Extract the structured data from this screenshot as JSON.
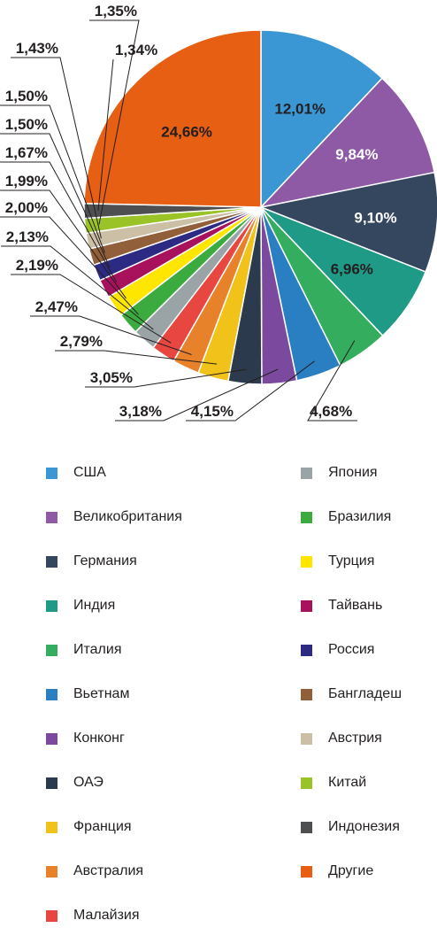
{
  "chart_data": {
    "type": "pie",
    "title": "",
    "slices": [
      {
        "label": "США",
        "value": 12.01,
        "text": "12,01%",
        "color": "#3a97d4",
        "label_color": "#231f20"
      },
      {
        "label": "Великобритания",
        "value": 9.84,
        "text": "9,84%",
        "color": "#8e5aa6",
        "label_color": "#ffffff"
      },
      {
        "label": "Германия",
        "value": 9.1,
        "text": "9,10%",
        "color": "#35475e",
        "label_color": "#ffffff"
      },
      {
        "label": "Индия",
        "value": 6.96,
        "text": "6,96%",
        "color": "#1e9a86",
        "label_color": "#231f20"
      },
      {
        "label": "Италия",
        "value": 4.68,
        "text": "4,68%",
        "color": "#35ad5e",
        "label_color": "#231f20"
      },
      {
        "label": "Вьетнам",
        "value": 4.15,
        "text": "4,15%",
        "color": "#2a7fc3",
        "label_color": "#231f20"
      },
      {
        "label": "Конконг",
        "value": 3.18,
        "text": "3,18%",
        "color": "#7b4a9f",
        "label_color": "#231f20"
      },
      {
        "label": "ОАЭ",
        "value": 3.05,
        "text": "3,05%",
        "color": "#2b3a4d",
        "label_color": "#231f20"
      },
      {
        "label": "Франция",
        "value": 2.79,
        "text": "2,79%",
        "color": "#f1c21a",
        "label_color": "#231f20"
      },
      {
        "label": "Австралия",
        "value": 2.47,
        "text": "2,47%",
        "color": "#e8822a",
        "label_color": "#231f20"
      },
      {
        "label": "Малайзия",
        "value": 2.19,
        "text": "2,19%",
        "color": "#e84640",
        "label_color": "#231f20"
      },
      {
        "label": "Япония",
        "value": 2.13,
        "text": "2,13%",
        "color": "#9aa3a6",
        "label_color": "#231f20"
      },
      {
        "label": "Бразилия",
        "value": 2.0,
        "text": "2,00%",
        "color": "#3cab3f",
        "label_color": "#231f20"
      },
      {
        "label": "Турция",
        "value": 1.99,
        "text": "1,99%",
        "color": "#ffe600",
        "label_color": "#231f20"
      },
      {
        "label": "Тайвань",
        "value": 1.67,
        "text": "1,67%",
        "color": "#a8125d",
        "label_color": "#231f20"
      },
      {
        "label": "Россия",
        "value": 1.5,
        "text": "1,50%",
        "color": "#2d2a84",
        "label_color": "#231f20"
      },
      {
        "label": "Бангладеш",
        "value": 1.5,
        "text": "1,50%",
        "color": "#91603a",
        "label_color": "#231f20"
      },
      {
        "label": "Австрия",
        "value": 1.43,
        "text": "1,43%",
        "color": "#cbbfa5",
        "label_color": "#231f20"
      },
      {
        "label": "Китай",
        "value": 1.35,
        "text": "1,35%",
        "color": "#9ac328",
        "label_color": "#231f20"
      },
      {
        "label": "Индонезия",
        "value": 1.34,
        "text": "1,34%",
        "color": "#4d4f51",
        "label_color": "#231f20"
      },
      {
        "label": "Другие",
        "value": 24.66,
        "text": "24,66%",
        "color": "#e65f12",
        "label_color": "#231f20"
      }
    ],
    "legend_position": "bottom",
    "legend_columns": 2
  }
}
